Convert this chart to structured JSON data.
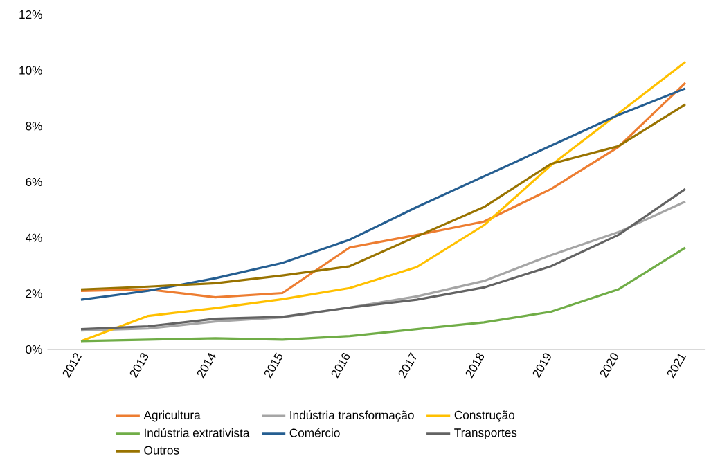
{
  "chart_data": {
    "type": "line",
    "categories": [
      "2012",
      "2013",
      "2014",
      "2015",
      "2016",
      "2017",
      "2018",
      "2019",
      "2020",
      "2021"
    ],
    "series": [
      {
        "name": "Agricultura",
        "color": "#ed7d31",
        "values": [
          2.1,
          2.15,
          1.87,
          2.02,
          3.65,
          4.1,
          4.58,
          5.75,
          7.25,
          9.55
        ]
      },
      {
        "name": "Indústria transformação",
        "color": "#a5a5a5",
        "values": [
          0.68,
          0.75,
          1.0,
          1.15,
          1.5,
          1.9,
          2.45,
          3.38,
          4.2,
          5.3
        ]
      },
      {
        "name": "Construção",
        "color": "#ffc000",
        "values": [
          0.3,
          1.2,
          1.48,
          1.8,
          2.2,
          2.95,
          4.45,
          6.6,
          8.45,
          10.3
        ]
      },
      {
        "name": "Indústria extrativista",
        "color": "#70ad47",
        "values": [
          0.3,
          0.35,
          0.4,
          0.35,
          0.48,
          0.73,
          0.97,
          1.35,
          2.15,
          3.65
        ]
      },
      {
        "name": "Comércio",
        "color": "#255e91",
        "values": [
          1.78,
          2.1,
          2.55,
          3.1,
          3.93,
          5.1,
          6.2,
          7.3,
          8.4,
          9.35
        ]
      },
      {
        "name": "Transportes",
        "color": "#636363",
        "values": [
          0.73,
          0.83,
          1.1,
          1.17,
          1.5,
          1.78,
          2.22,
          2.98,
          4.1,
          5.75
        ]
      },
      {
        "name": "Outros",
        "color": "#997300",
        "values": [
          2.15,
          2.25,
          2.37,
          2.65,
          2.98,
          4.05,
          5.1,
          6.65,
          7.28,
          8.78
        ]
      }
    ],
    "ylim": [
      0,
      12
    ],
    "yticks": [
      {
        "value": 0,
        "label": "0%"
      },
      {
        "value": 2,
        "label": "2%"
      },
      {
        "value": 4,
        "label": "4%"
      },
      {
        "value": 6,
        "label": "6%"
      },
      {
        "value": 8,
        "label": "8%"
      },
      {
        "value": 10,
        "label": "10%"
      },
      {
        "value": 12,
        "label": "12%"
      }
    ],
    "legend": "bottom"
  }
}
